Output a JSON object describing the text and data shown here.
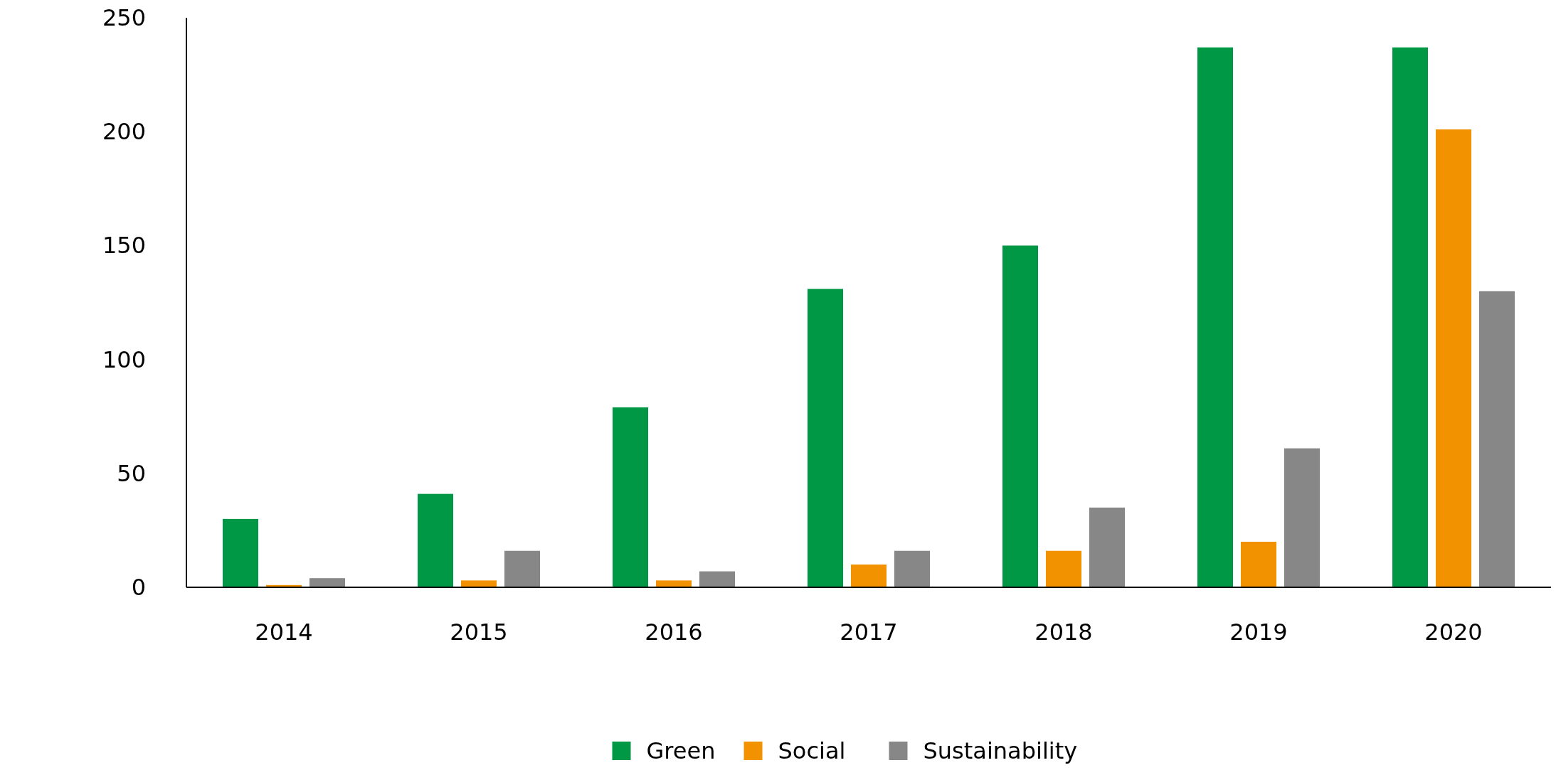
{
  "chart_data": {
    "type": "bar",
    "categories": [
      "2014",
      "2015",
      "2016",
      "2017",
      "2018",
      "2019",
      "2020"
    ],
    "series": [
      {
        "name": "Green",
        "color": "#009845",
        "values": [
          30,
          41,
          79,
          131,
          150,
          237,
          237
        ]
      },
      {
        "name": "Social",
        "color": "#f39200",
        "values": [
          1,
          3,
          3,
          10,
          16,
          20,
          201
        ]
      },
      {
        "name": "Sustainability",
        "color": "#878787",
        "values": [
          4,
          16,
          7,
          16,
          35,
          61,
          130
        ]
      }
    ],
    "ylim": [
      0,
      250
    ],
    "yticks": [
      0,
      50,
      100,
      150,
      200,
      250
    ],
    "grid": false,
    "legend": "bottom"
  }
}
